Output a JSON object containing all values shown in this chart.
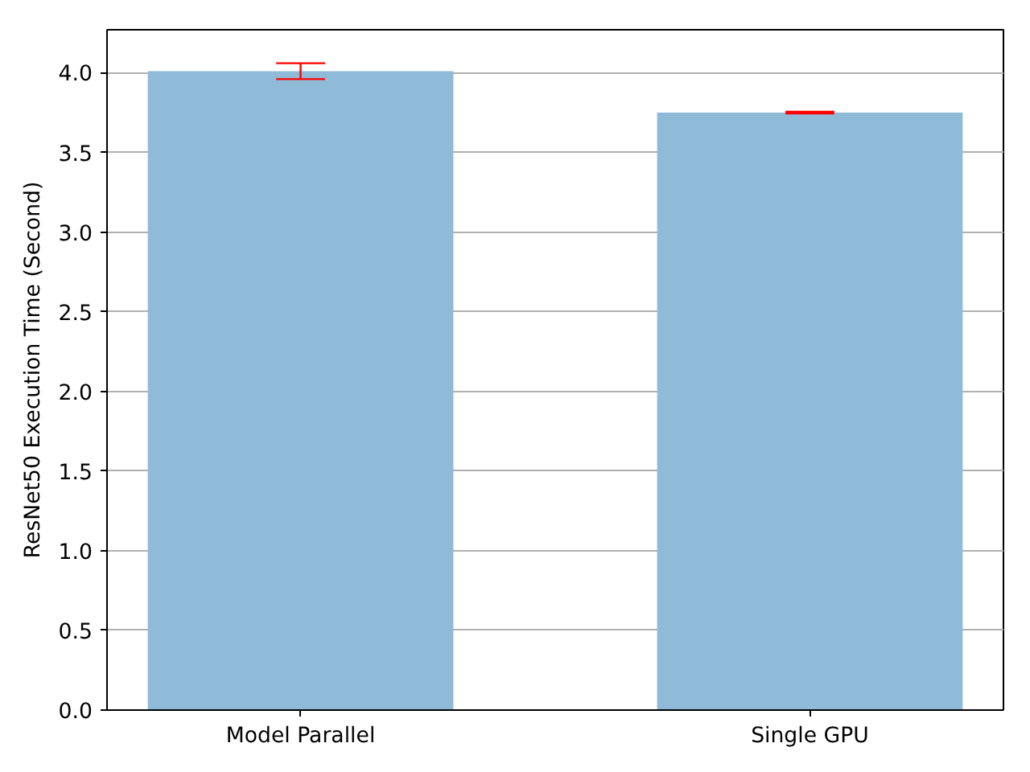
{
  "chart_data": {
    "type": "bar",
    "ylabel": "ResNet50 Execution Time (Second)",
    "categories": [
      "Model Parallel",
      "Single GPU"
    ],
    "values": [
      4.01,
      3.75
    ],
    "errors": [
      0.05,
      0.005
    ],
    "color": "#8fbbd9",
    "ylim": [
      0,
      4.27
    ],
    "yticks": [
      {
        "value": 0,
        "label": "0.0"
      },
      {
        "value": 0.5,
        "label": "0.5"
      },
      {
        "value": 1,
        "label": "1.0"
      },
      {
        "value": 1.5,
        "label": "1.5"
      },
      {
        "value": 2,
        "label": "2.0"
      },
      {
        "value": 2.5,
        "label": "2.5"
      },
      {
        "value": 3,
        "label": "3.0"
      },
      {
        "value": 3.5,
        "label": "3.5"
      },
      {
        "value": 4,
        "label": "4.0"
      }
    ],
    "grid": "y"
  }
}
